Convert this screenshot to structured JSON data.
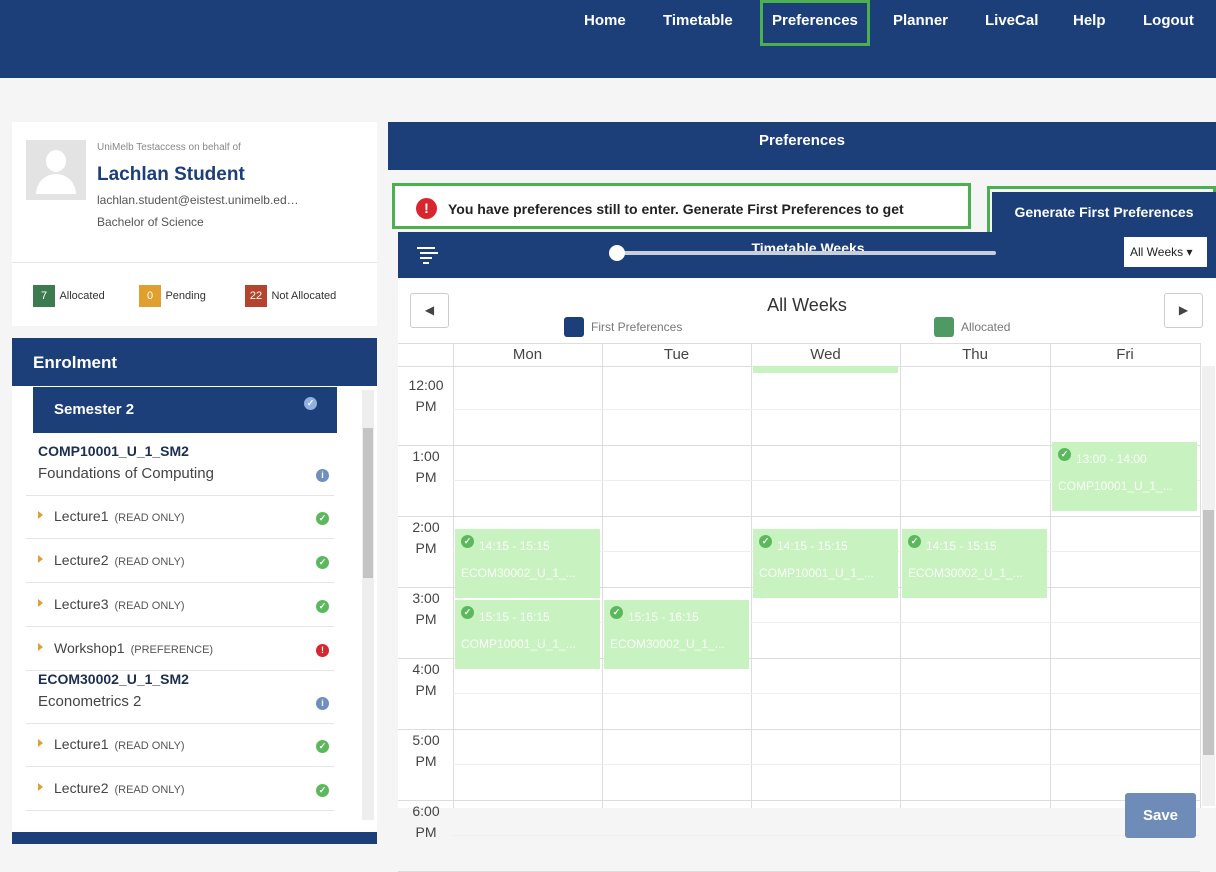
{
  "nav": [
    "Home",
    "Timetable",
    "Preferences",
    "Planner",
    "LiveCal",
    "Help",
    "Logout"
  ],
  "profile": {
    "on_behalf": "UniMelb Testaccess on behalf of",
    "name": "Lachlan Student",
    "email": "lachlan.student@eistest.unimelb.ed…",
    "degree": "Bachelor of Science"
  },
  "stats": [
    {
      "count": 7,
      "label": "Allocated"
    },
    {
      "count": 0,
      "label": "Pending"
    },
    {
      "count": 22,
      "label": "Not Allocated"
    }
  ],
  "enrolment": {
    "title": "Enrolment",
    "semester": "Semester 2",
    "subjects": [
      {
        "code": "COMP10001_U_1_SM2",
        "name": "Foundations of Computing",
        "items": [
          {
            "name": "Lecture1",
            "mode": "(READ ONLY)"
          },
          {
            "name": "Lecture2",
            "mode": "(READ ONLY)"
          },
          {
            "name": "Lecture3",
            "mode": "(READ ONLY)"
          },
          {
            "name": "Workshop1",
            "mode": "(PREFERENCE)"
          }
        ]
      },
      {
        "code": "ECOM30002_U_1_SM2",
        "name": "Econometrics 2",
        "items": [
          {
            "name": "Lecture1",
            "mode": "(READ ONLY)"
          },
          {
            "name": "Lecture2",
            "mode": "(READ ONLY)"
          }
        ]
      }
    ]
  },
  "preferences": {
    "title": "Preferences",
    "alert": "You have preferences still to enter. Generate First Preferences to get",
    "generate_button": "Generate First Preferences",
    "weeks_label": "Timetable Weeks",
    "weeks_select": "All Weeks",
    "calendar": {
      "title": "All Weeks",
      "legend": [
        "First Preferences",
        "Allocated"
      ],
      "days": [
        "Mon",
        "Tue",
        "Wed",
        "Thu",
        "Fri"
      ],
      "times": [
        "12:00 PM",
        "1:00 PM",
        "2:00 PM",
        "3:00 PM",
        "4:00 PM",
        "5:00 PM",
        "6:00 PM"
      ],
      "events": [
        {
          "time": "14:15 - 15:15",
          "subject": "ECOM30002_U_1_..."
        },
        {
          "time": "15:15 - 16:15",
          "subject": "COMP10001_U_1_..."
        },
        {
          "time": "15:15 - 16:15",
          "subject": "ECOM30002_U_1_..."
        },
        {
          "time": "14:15 - 15:15",
          "subject": "COMP10001_U_1_..."
        },
        {
          "time": "14:15 - 15:15",
          "subject": "ECOM30002_U_1_..."
        },
        {
          "time": "13:00 - 14:00",
          "subject": "COMP10001_U_1_..."
        }
      ]
    },
    "save": "Save"
  }
}
